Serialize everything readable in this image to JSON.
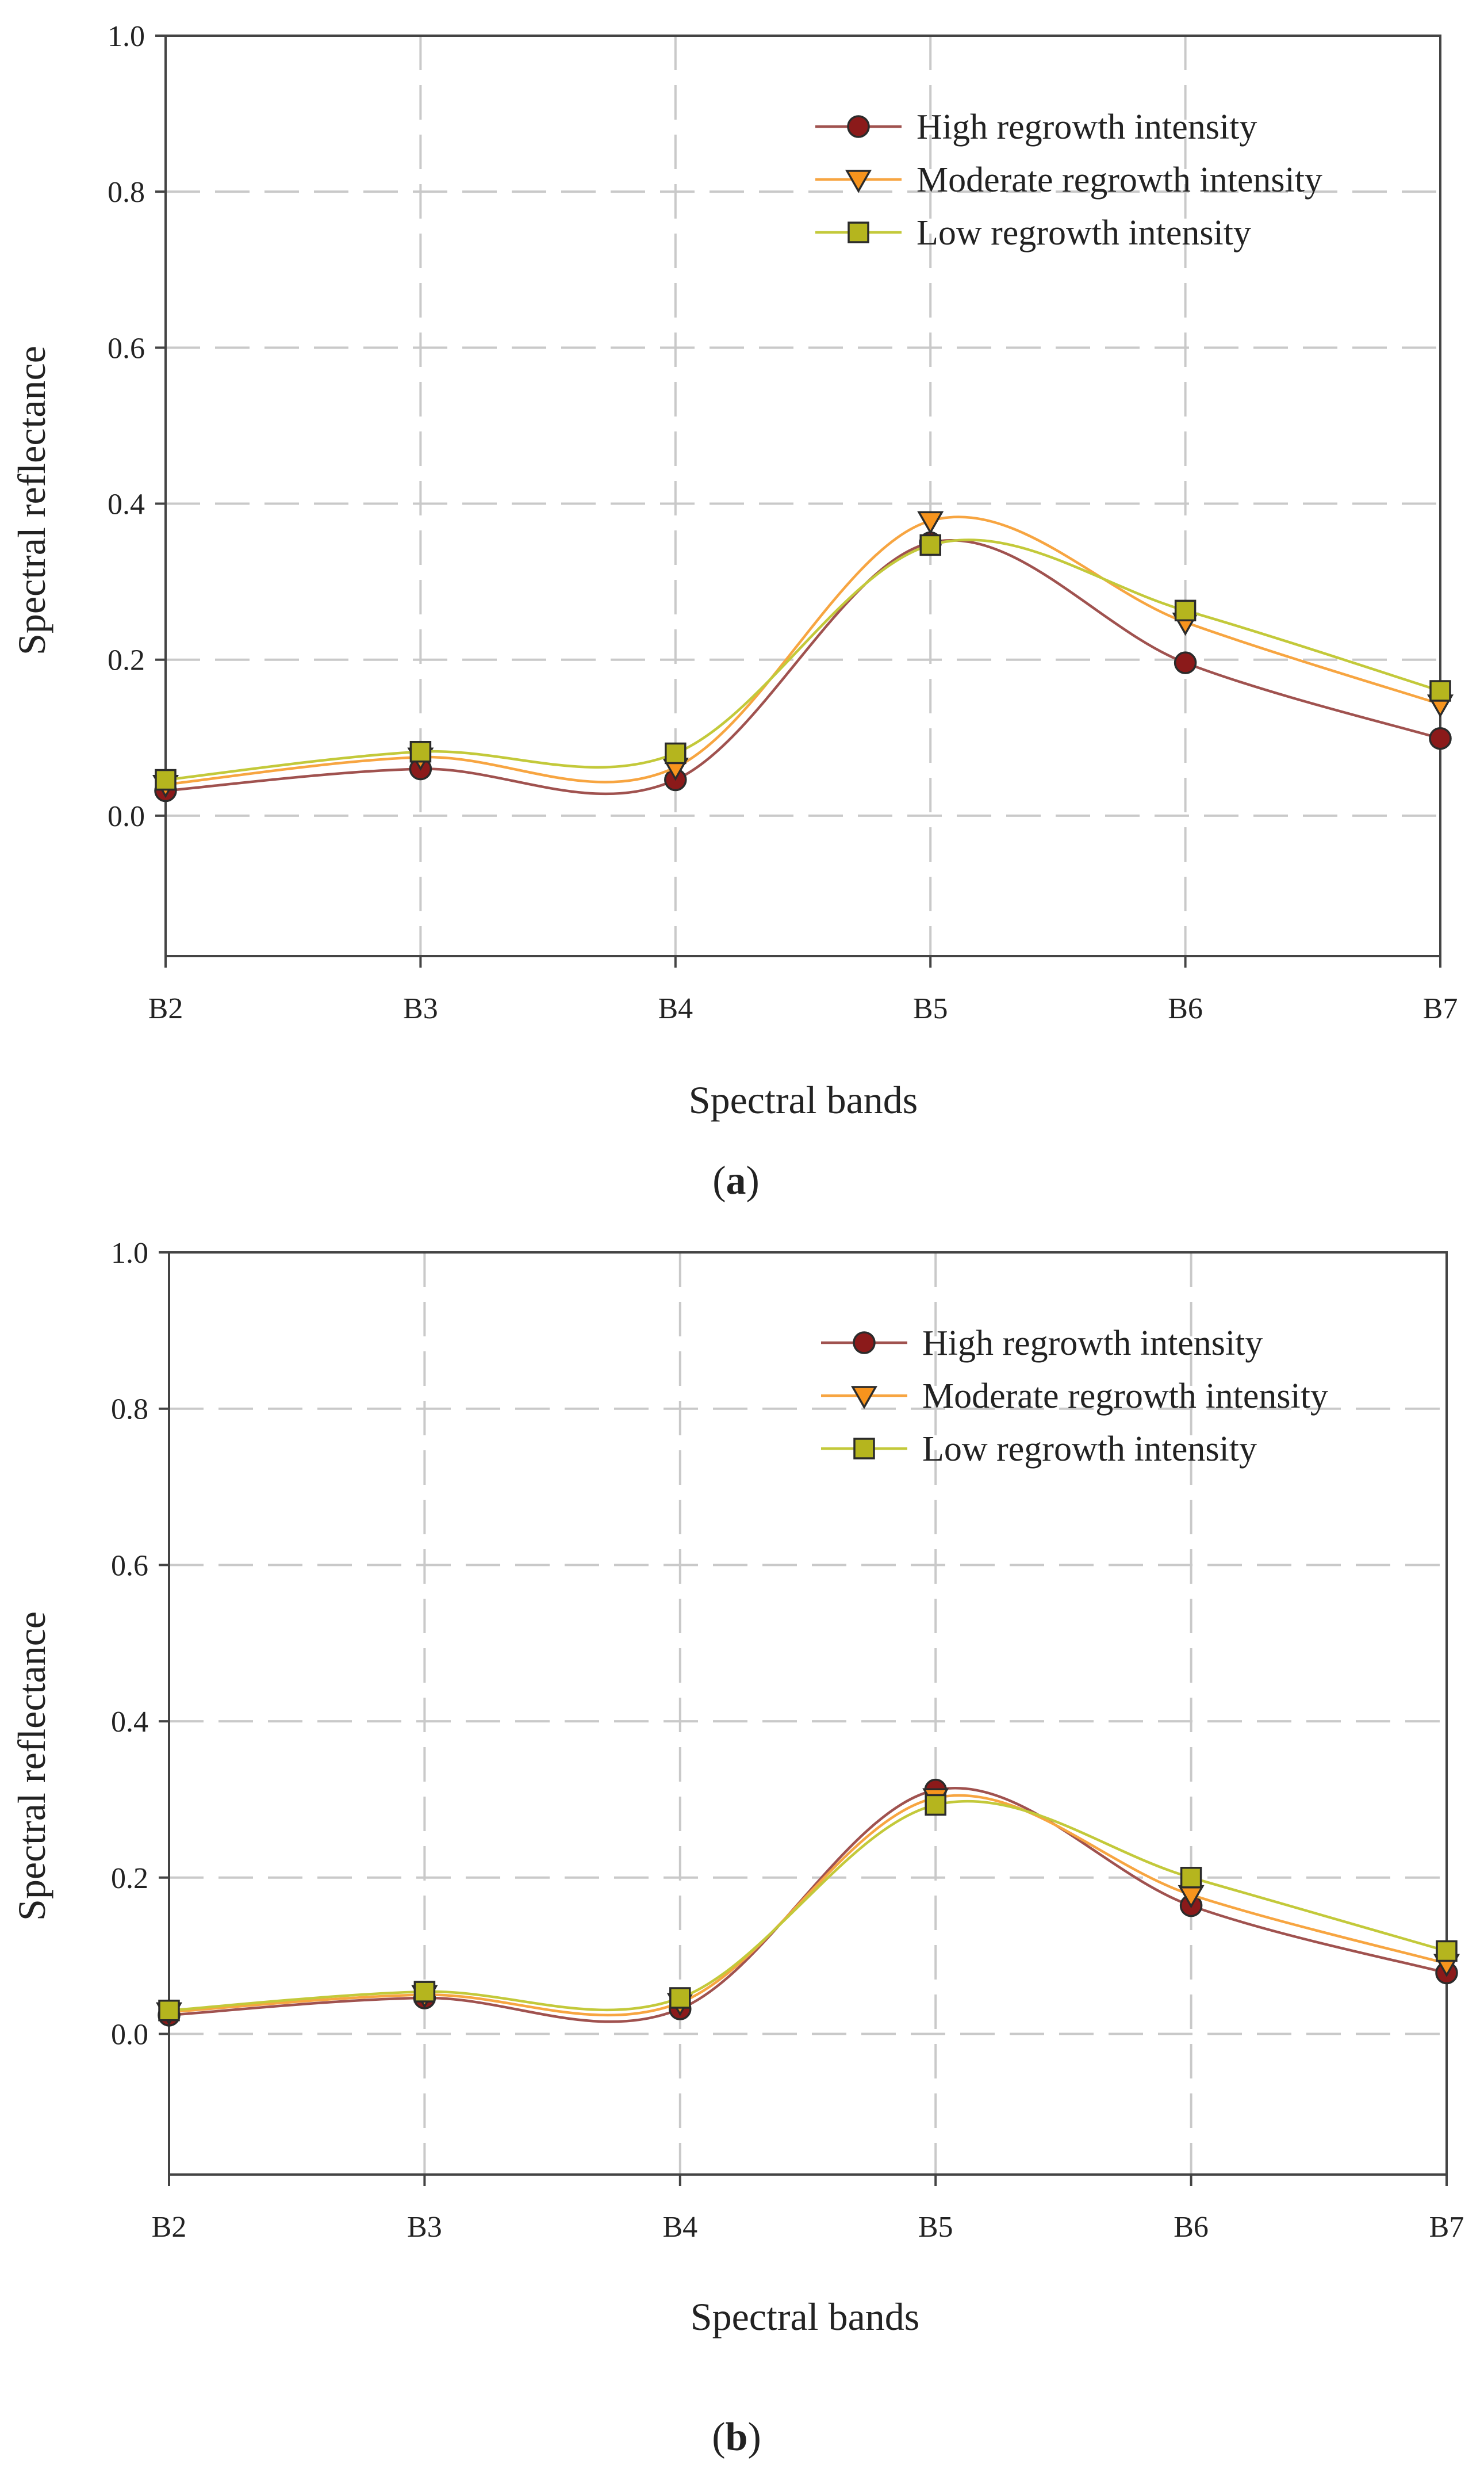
{
  "chart_data": [
    {
      "type": "line",
      "panel_label": "a",
      "title": "",
      "xlabel": "Spectral bands",
      "ylabel": "Spectral reflectance",
      "categories": [
        "B2",
        "B3",
        "B4",
        "B5",
        "B6",
        "B7"
      ],
      "ylim": [
        -0.18,
        1.0
      ],
      "yticks": [
        "0.0",
        "0.2",
        "0.4",
        "0.6",
        "0.8",
        "1.0"
      ],
      "ytick_values": [
        0.0,
        0.2,
        0.4,
        0.6,
        0.8,
        1.0
      ],
      "grid": true,
      "legend_position": "top-right",
      "series": [
        {
          "name": "High regrowth intensity",
          "marker": "circle",
          "color": "#8b1a1a",
          "line_color": "#a0524f",
          "values": [
            0.032,
            0.06,
            0.046,
            0.35,
            0.196,
            0.099
          ]
        },
        {
          "name": "Moderate regrowth intensity",
          "marker": "triangle-down",
          "color": "#f7941d",
          "line_color": "#f7a541",
          "values": [
            0.04,
            0.075,
            0.062,
            0.378,
            0.248,
            0.143
          ]
        },
        {
          "name": "Low regrowth intensity",
          "marker": "square",
          "color": "#b5b51e",
          "line_color": "#c3c93a",
          "values": [
            0.046,
            0.082,
            0.08,
            0.347,
            0.263,
            0.16
          ]
        }
      ]
    },
    {
      "type": "line",
      "panel_label": "b",
      "title": "",
      "xlabel": "Spectral bands",
      "ylabel": "Spectral reflectance",
      "categories": [
        "B2",
        "B3",
        "B4",
        "B5",
        "B6",
        "B7"
      ],
      "ylim": [
        -0.18,
        1.0
      ],
      "yticks": [
        "0.0",
        "0.2",
        "0.4",
        "0.6",
        "0.8",
        "1.0"
      ],
      "ytick_values": [
        0.0,
        0.2,
        0.4,
        0.6,
        0.8,
        1.0
      ],
      "grid": true,
      "legend_position": "top-right",
      "series": [
        {
          "name": "High regrowth intensity",
          "marker": "circle",
          "color": "#8b1a1a",
          "line_color": "#a0524f",
          "values": [
            0.024,
            0.046,
            0.032,
            0.312,
            0.164,
            0.078
          ]
        },
        {
          "name": "Moderate regrowth intensity",
          "marker": "triangle-down",
          "color": "#f7941d",
          "line_color": "#f7a541",
          "values": [
            0.028,
            0.05,
            0.04,
            0.302,
            0.178,
            0.09
          ]
        },
        {
          "name": "Low regrowth intensity",
          "marker": "square",
          "color": "#b5b51e",
          "line_color": "#c3c93a",
          "values": [
            0.03,
            0.054,
            0.046,
            0.293,
            0.2,
            0.106
          ]
        }
      ]
    }
  ],
  "captions": [
    {
      "open": "(",
      "label": "a",
      "close": ")"
    },
    {
      "open": "(",
      "label": "b",
      "close": ")"
    }
  ]
}
